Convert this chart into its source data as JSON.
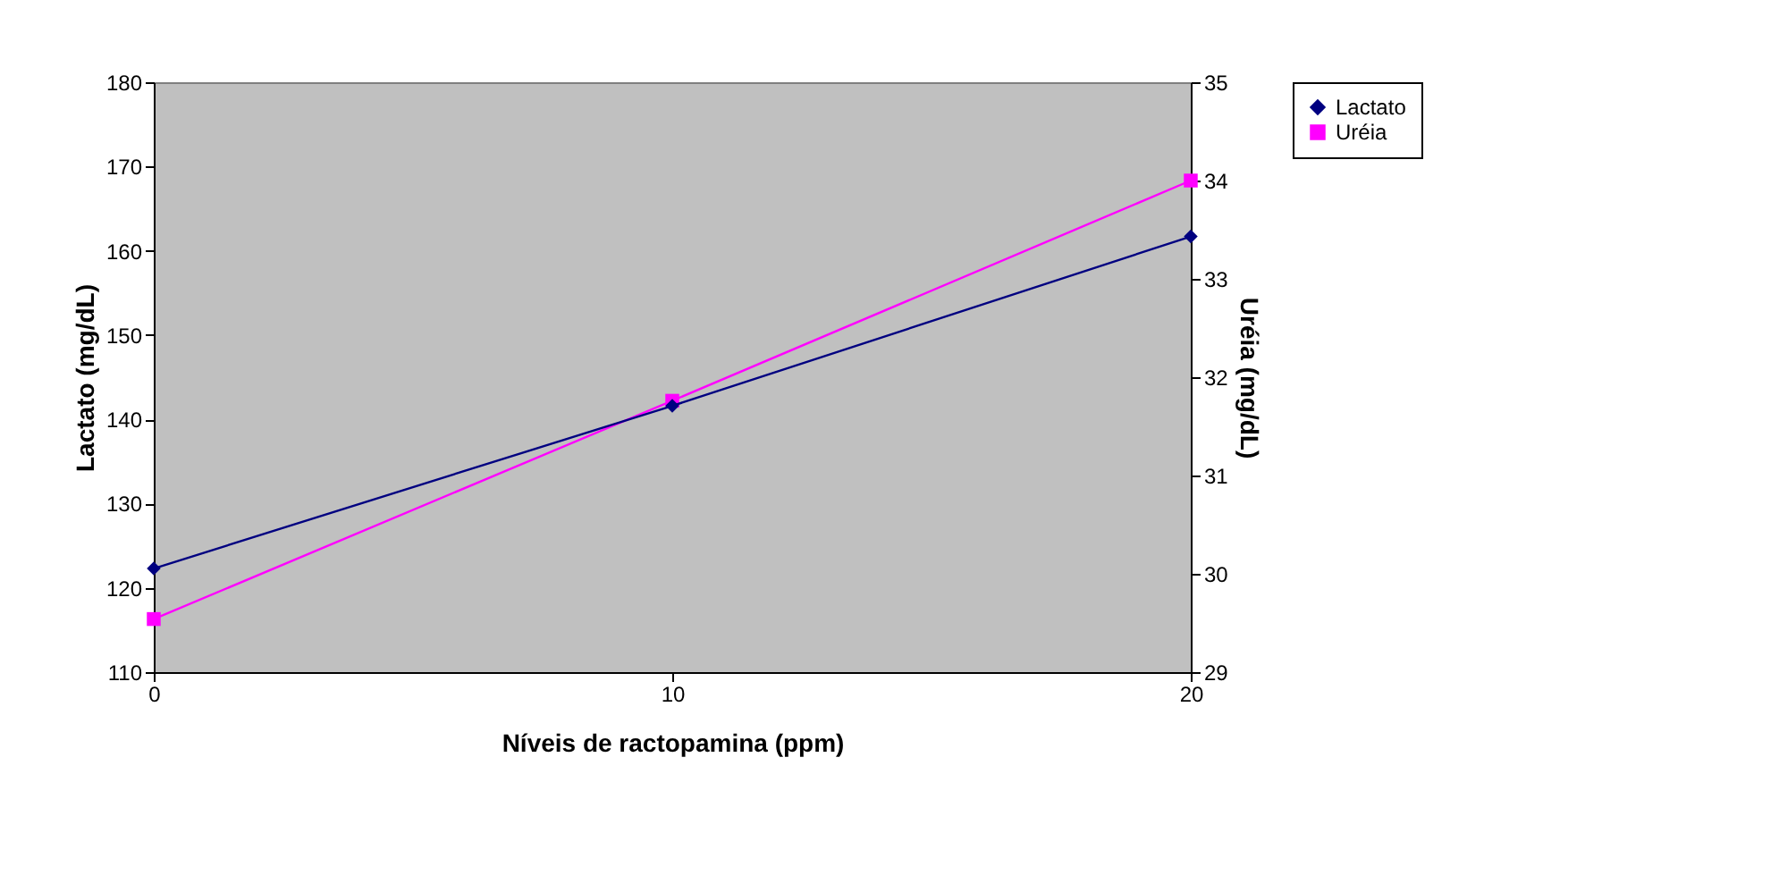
{
  "chart_data": {
    "type": "line",
    "xlabel": "Níveis de ractopamina (ppm)",
    "ylabel": "Lactato (mg/dL)",
    "y2label": "Uréia (mg/dL)",
    "x": [
      0,
      10,
      20
    ],
    "xlim": [
      0,
      20
    ],
    "xticks": [
      0,
      10,
      20
    ],
    "ylim": [
      110,
      180
    ],
    "yticks": [
      110,
      120,
      130,
      140,
      150,
      160,
      170,
      180
    ],
    "y2lim": [
      29,
      35
    ],
    "y2ticks": [
      29,
      30,
      31,
      32,
      33,
      34,
      35
    ],
    "grid": false,
    "legend": "right",
    "series": [
      {
        "name": "Lactato",
        "color": "#000080",
        "marker": "diamond",
        "values": [
          122.3,
          141.6,
          161.7
        ]
      },
      {
        "name": "Uréia",
        "color": "#ff00ff",
        "marker": "square",
        "axis": "y2",
        "values": [
          29.54,
          31.76,
          34.0
        ]
      }
    ]
  }
}
